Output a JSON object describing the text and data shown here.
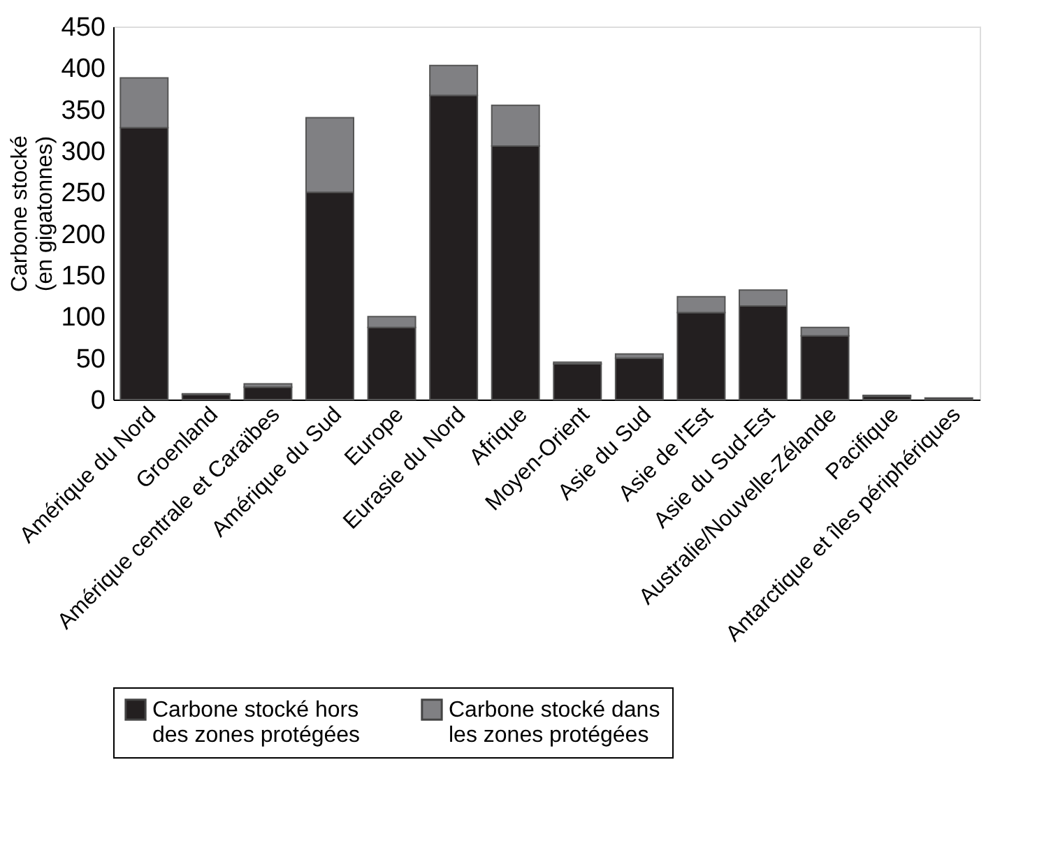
{
  "chart_data": {
    "type": "bar",
    "stacked": true,
    "ylabel": "Carbone stocké\n(en gigatonnes)",
    "categories": [
      "Amérique du Nord",
      "Groenland",
      "Amérique centrale et Caraïbes",
      "Amérique du Sud",
      "Europe",
      "Eurasie du Nord",
      "Afrique",
      "Moyen-Orient",
      "Asie du Sud",
      "Asie de l'Est",
      "Asie du Sud-Est",
      "Australie/Nouvelle-Zélande",
      "Pacifique",
      "Antarctique et îles périphériques"
    ],
    "series": [
      {
        "name": "Carbone stocké hors des zones protégées",
        "color": "#231f20",
        "values": [
          328,
          6,
          15,
          250,
          87,
          367,
          306,
          43,
          50,
          105,
          113,
          77,
          4,
          2
        ]
      },
      {
        "name": "Carbone stocké dans les zones protégées",
        "color": "#808083",
        "values": [
          60,
          1,
          4,
          90,
          13,
          36,
          49,
          2,
          5,
          19,
          19,
          10,
          1,
          null
        ]
      }
    ],
    "ylim": [
      0,
      450
    ],
    "yticks": [
      0,
      50,
      100,
      150,
      200,
      250,
      300,
      350,
      400,
      450
    ],
    "grid": false,
    "legend": "bottom"
  }
}
